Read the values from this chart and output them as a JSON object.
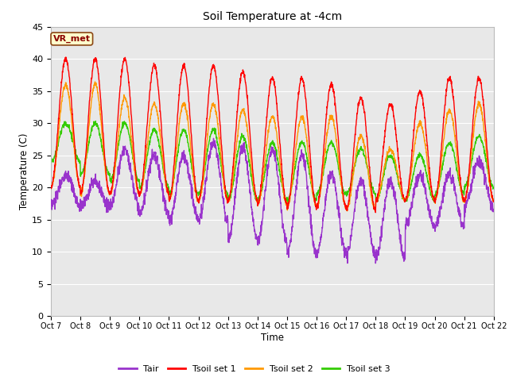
{
  "title": "Soil Temperature at -4cm",
  "xlabel": "Time",
  "ylabel": "Temperature (C)",
  "ylim": [
    0,
    45
  ],
  "annotation": "VR_met",
  "background_color": "#e8e8e8",
  "outer_background": "#ffffff",
  "legend_entries": [
    "Tair",
    "Tsoil set 1",
    "Tsoil set 2",
    "Tsoil set 3"
  ],
  "legend_colors": [
    "#9933cc",
    "#ff0000",
    "#ff9900",
    "#33cc00"
  ],
  "line_colors": [
    "#9933cc",
    "#ff0000",
    "#ff9900",
    "#33cc00"
  ],
  "xtick_labels": [
    "Oct 7",
    "Oct 8",
    "Oct 9",
    "Oct 10",
    "Oct 11",
    "Oct 12",
    "Oct 13",
    "Oct 14",
    "Oct 15",
    "Oct 16",
    "Oct 17",
    "Oct 18",
    "Oct 19",
    "Oct 20",
    "Oct 21",
    "Oct 22"
  ],
  "n_days": 15,
  "points_per_day": 144,
  "tair_peaks": [
    22,
    21,
    26,
    25,
    25,
    27,
    26,
    26,
    25,
    22,
    21,
    21,
    22,
    22,
    24
  ],
  "tair_mins": [
    17,
    17,
    17,
    16,
    15,
    15,
    12,
    11.5,
    9.5,
    10,
    9.5,
    9,
    14,
    14,
    17
  ],
  "tsoil1_peaks": [
    40,
    40,
    40,
    39,
    39,
    39,
    38,
    37,
    37,
    36,
    34,
    33,
    35,
    37,
    37
  ],
  "tsoil1_mins": [
    20,
    19,
    19,
    19,
    18,
    18,
    18,
    17.5,
    17,
    17,
    16.5,
    18,
    18,
    18,
    18
  ],
  "tsoil2_peaks": [
    36,
    36,
    34,
    33,
    33,
    33,
    32,
    31,
    31,
    31,
    28,
    26,
    30,
    32,
    33
  ],
  "tsoil2_mins": [
    20,
    19,
    19,
    19,
    18,
    18,
    18,
    17.5,
    17,
    17,
    16.5,
    18,
    18,
    18,
    18
  ],
  "tsoil3_peaks": [
    30,
    30,
    30,
    29,
    29,
    29,
    28,
    27,
    27,
    27,
    26,
    25,
    25,
    27,
    28
  ],
  "tsoil3_mins": [
    24,
    22,
    21,
    20,
    19,
    19,
    18,
    18,
    18,
    19,
    19,
    18,
    18,
    19,
    20
  ]
}
